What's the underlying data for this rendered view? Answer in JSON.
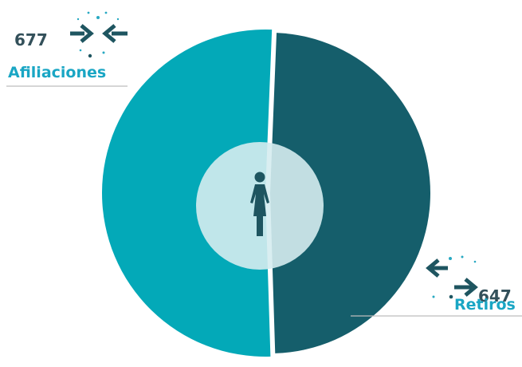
{
  "chart_data": {
    "type": "pie",
    "title": "",
    "slices": [
      {
        "label": "Afiliaciones",
        "value": 677,
        "color": "#03a9b8",
        "icon": "arrows-inward-icon"
      },
      {
        "label": "Retiros",
        "value": 647,
        "color": "#155e6b",
        "icon": "arrows-outward-icon"
      }
    ],
    "center_icon": "woman-icon",
    "legend": "callout-labels"
  },
  "labels": {
    "afiliaciones": {
      "value": "677",
      "label": "Afiliaciones"
    },
    "retiros": {
      "value": "647",
      "label": "Retiros"
    }
  },
  "colors": {
    "accent_text": "#1aa6c4",
    "number_text": "#33505a",
    "center_circle": "#d5ecef",
    "icon_dark": "#1e5560"
  }
}
